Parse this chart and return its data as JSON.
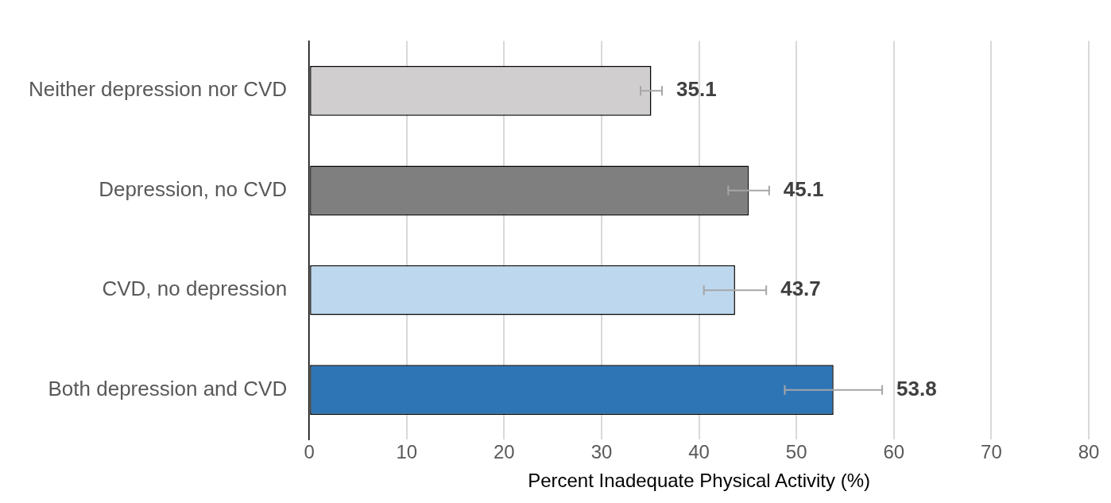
{
  "chart_data": {
    "type": "bar",
    "orientation": "horizontal",
    "xlabel": "Percent Inadequate Physical Activity (%)",
    "categories": [
      "Neither depression nor CVD",
      "Depression, no CVD",
      "CVD, no depression",
      "Both depression and CVD"
    ],
    "values": [
      35.1,
      45.1,
      43.7,
      53.8
    ],
    "colors": [
      "#d0cece",
      "#7f7f7f",
      "#bdd7ee",
      "#2e75b6"
    ],
    "errors": [
      1.1,
      2.1,
      3.2,
      5.0
    ],
    "xlim": [
      0,
      80
    ],
    "xticks": [
      0,
      10,
      20,
      30,
      40,
      50,
      60,
      70,
      80
    ],
    "grid": "x",
    "legend": false,
    "data_labels": true
  }
}
